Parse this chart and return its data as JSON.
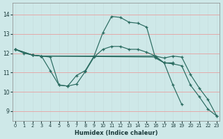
{
  "xlabel": "Humidex (Indice chaleur)",
  "xlim": [
    -0.3,
    23.3
  ],
  "ylim": [
    8.5,
    14.6
  ],
  "yticks": [
    9,
    10,
    11,
    12,
    13,
    14
  ],
  "xtick_labels": [
    "0",
    "1",
    "2",
    "3",
    "4",
    "5",
    "6",
    "7",
    "8",
    "9",
    "10",
    "11",
    "12",
    "13",
    "14",
    "15",
    "16",
    "17",
    "18",
    "19",
    "20",
    "21",
    "22",
    "23"
  ],
  "xticks": [
    0,
    1,
    2,
    3,
    4,
    5,
    6,
    7,
    8,
    9,
    10,
    11,
    12,
    13,
    14,
    15,
    16,
    17,
    18,
    19,
    20,
    21,
    22,
    23
  ],
  "bg_color": "#cee8e8",
  "grid_color": "#b8d8d8",
  "line_color": "#2a6b60",
  "curves": [
    {
      "x": [
        0,
        1,
        2,
        3,
        4,
        5,
        6,
        7,
        8,
        9,
        10,
        11,
        12,
        13,
        14,
        15,
        16,
        17,
        18
      ],
      "y": [
        12.2,
        12.0,
        11.9,
        11.85,
        11.8,
        10.35,
        10.3,
        10.85,
        11.1,
        11.85,
        13.05,
        13.9,
        13.85,
        13.6,
        13.55,
        13.35,
        11.75,
        11.5,
        11.5
      ]
    },
    {
      "x": [
        0,
        2,
        3,
        4,
        5,
        6,
        7,
        8,
        9,
        10,
        11,
        12,
        13,
        14,
        15,
        16,
        17,
        18,
        19
      ],
      "y": [
        12.2,
        11.9,
        11.85,
        11.1,
        10.35,
        10.3,
        10.4,
        11.05,
        11.8,
        12.2,
        12.35,
        12.35,
        12.2,
        12.2,
        12.05,
        11.85,
        11.5,
        10.35,
        9.35
      ]
    },
    {
      "x": [
        0,
        2,
        3,
        16,
        17,
        18,
        19,
        20,
        21,
        22,
        23
      ],
      "y": [
        12.2,
        11.9,
        11.85,
        11.85,
        11.75,
        11.85,
        11.8,
        10.9,
        10.2,
        9.6,
        8.75
      ]
    },
    {
      "x": [
        0,
        2,
        3,
        16,
        17,
        18,
        19,
        20,
        21,
        22,
        23
      ],
      "y": [
        12.2,
        11.9,
        11.85,
        11.8,
        11.5,
        11.45,
        11.35,
        10.35,
        9.75,
        9.1,
        8.75
      ]
    }
  ]
}
